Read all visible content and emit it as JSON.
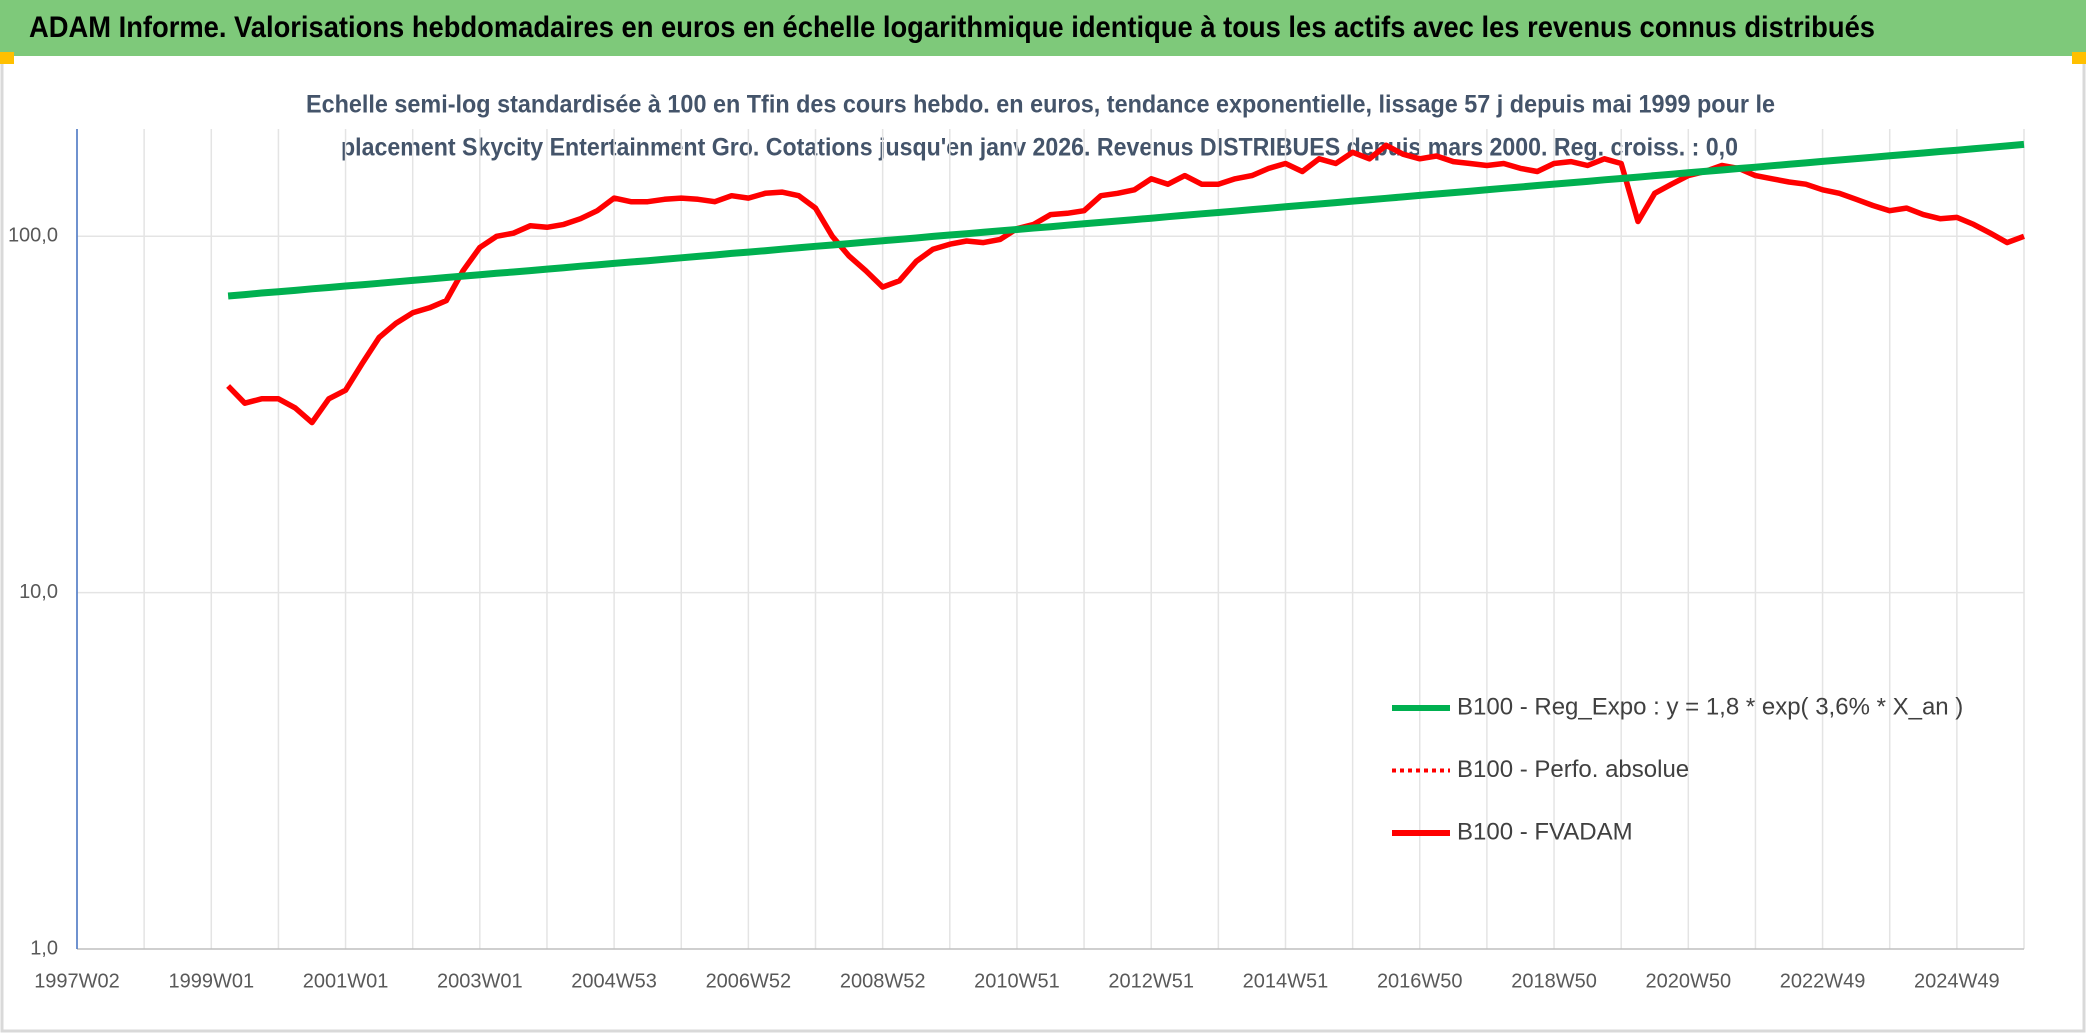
{
  "chart_data": {
    "type": "line",
    "title": "ADAM Informe. Valorisations hebdomadaires en euros en échelle logarithmique identique à tous les actifs avec les revenus connus distribués",
    "subtitle_lines": [
      "Echelle semi-log standardisée à 100 en Tfin des cours hebdo. en euros, tendance exponentielle, lissage 57 j depuis mai 1999 pour le",
      "placement Skycity Entertainment Gro. Cotations jusqu'en janv 2026. Revenus DISTRIBUES depuis mars 2000. Reg. croiss. : 0,0"
    ],
    "log_scale": true,
    "grid": true,
    "legend": "right",
    "ylim": [
      1,
      200
    ],
    "yticks": [
      {
        "value": 1,
        "label": "1,0"
      },
      {
        "value": 10,
        "label": "10,0"
      },
      {
        "value": 100,
        "label": "100,0"
      }
    ],
    "categories": [
      "1997W02",
      null,
      null,
      null,
      null,
      null,
      null,
      null,
      "1999W01",
      null,
      null,
      null,
      null,
      null,
      null,
      null,
      "2001W01",
      null,
      null,
      null,
      null,
      null,
      null,
      null,
      "2003W01",
      null,
      null,
      null,
      null,
      null,
      null,
      null,
      "2004W53",
      null,
      null,
      null,
      null,
      null,
      null,
      null,
      "2006W52",
      null,
      null,
      null,
      null,
      null,
      null,
      null,
      "2008W52",
      null,
      null,
      null,
      null,
      null,
      null,
      null,
      "2010W51",
      null,
      null,
      null,
      null,
      null,
      null,
      null,
      "2012W51",
      null,
      null,
      null,
      null,
      null,
      null,
      null,
      "2014W51",
      null,
      null,
      null,
      null,
      null,
      null,
      null,
      "2016W50",
      null,
      null,
      null,
      null,
      null,
      null,
      null,
      "2018W50",
      null,
      null,
      null,
      null,
      null,
      null,
      null,
      "2020W50",
      null,
      null,
      null,
      null,
      null,
      null,
      null,
      "2022W49",
      null,
      null,
      null,
      null,
      null,
      null,
      null,
      "2024W49",
      null,
      null,
      null,
      null
    ],
    "series": [
      {
        "name": "B100 - Reg_Expo : y = 1,8 * exp( 3,6% *  X_an )",
        "color": "#00b050",
        "style": "solid",
        "values": [
          null,
          null,
          null,
          null,
          null,
          null,
          null,
          null,
          null,
          68.0,
          68.6,
          69.3,
          69.9,
          70.5,
          71.2,
          71.8,
          72.5,
          73.1,
          73.8,
          74.5,
          75.2,
          75.9,
          76.6,
          77.3,
          78.0,
          78.7,
          79.4,
          80.1,
          80.9,
          81.6,
          82.4,
          83.1,
          83.9,
          84.7,
          85.4,
          86.2,
          87.0,
          87.8,
          88.6,
          89.5,
          90.3,
          91.1,
          92.0,
          92.8,
          93.7,
          94.5,
          95.4,
          96.3,
          97.2,
          98.0,
          98.9,
          99.9,
          100.8,
          101.7,
          102.6,
          103.6,
          104.5,
          105.5,
          106.4,
          107.4,
          108.4,
          109.4,
          110.4,
          111.4,
          112.4,
          113.5,
          114.5,
          115.6,
          116.6,
          117.7,
          118.8,
          119.9,
          121.0,
          122.1,
          123.2,
          124.3,
          125.5,
          126.6,
          127.8,
          129.0,
          130.2,
          131.4,
          132.6,
          133.8,
          135.0,
          136.3,
          137.5,
          138.8,
          140.1,
          141.3,
          142.6,
          144.0,
          145.3,
          146.6,
          148.0,
          149.3,
          150.7,
          152.1,
          153.5,
          154.9,
          156.3,
          157.8,
          159.2,
          160.7,
          162.2,
          163.7,
          165.2,
          166.7,
          168.2,
          169.7,
          171.3,
          172.9,
          174.4,
          176.0,
          177.7,
          179.3,
          181.0
        ]
      },
      {
        "name": "B100 - Perfo. absolue",
        "color": "#ff0000",
        "style": "dotted"
      },
      {
        "name": "B100 - FVADAM",
        "color": "#ff0000",
        "style": "solid",
        "values": [
          null,
          null,
          null,
          null,
          null,
          null,
          null,
          null,
          null,
          38,
          34,
          35,
          35,
          33,
          30,
          35,
          37,
          44,
          52,
          57,
          61,
          63,
          66,
          80,
          93,
          100,
          102,
          107,
          106,
          108,
          112,
          118,
          128,
          125,
          125,
          127,
          128,
          127,
          125,
          130,
          128,
          132,
          133,
          130,
          120,
          100,
          88,
          80,
          72,
          75,
          85,
          92,
          95,
          97,
          96,
          98,
          105,
          108,
          115,
          116,
          118,
          130,
          132,
          135,
          145,
          140,
          148,
          140,
          140,
          145,
          148,
          155,
          160,
          152,
          165,
          160,
          172,
          165,
          180,
          170,
          165,
          168,
          162,
          160,
          158,
          160,
          155,
          152,
          160,
          162,
          158,
          165,
          160,
          110,
          132,
          140,
          148,
          152,
          158,
          155,
          148,
          145,
          142,
          140,
          135,
          132,
          127,
          122,
          118,
          120,
          115,
          112,
          113,
          108,
          102,
          96,
          100
        ]
      }
    ]
  }
}
